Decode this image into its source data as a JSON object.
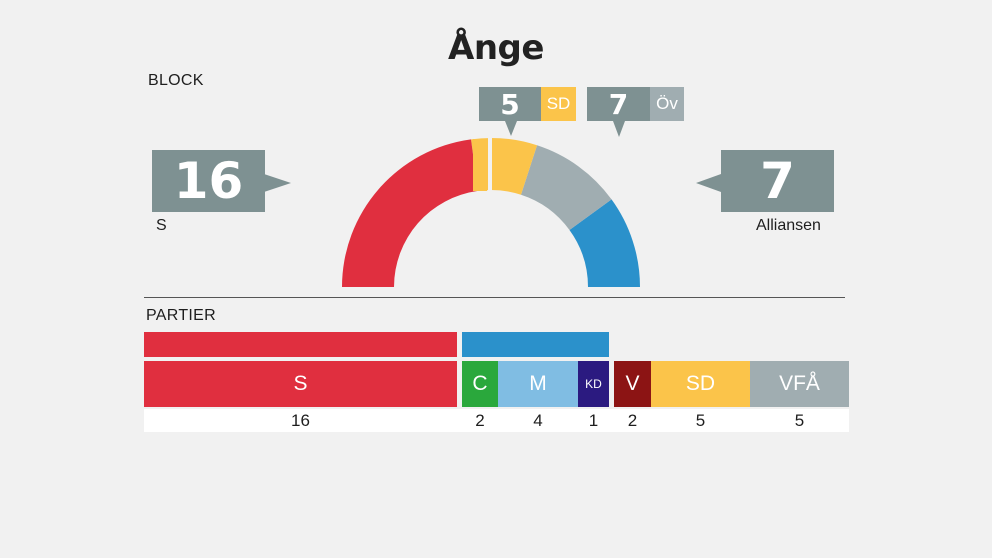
{
  "title": "Ånge",
  "block_label": "BLOCK",
  "parties_label": "PARTIER",
  "blocks": {
    "left": {
      "value": "16",
      "name": "S"
    },
    "right": {
      "value": "7",
      "name": "Alliansen"
    },
    "sd": {
      "value": "5",
      "tag": "SD"
    },
    "ov": {
      "value": "7",
      "tag": "Öv"
    }
  },
  "colors": {
    "S": "#e02f3f",
    "C": "#2aa83c",
    "M": "#80bde3",
    "KD": "#2b1a80",
    "V": "#8c1414",
    "SD": "#fbc44a",
    "VFA": "#a0adb1",
    "alliance": "#2b91cb",
    "other": "#a0adb1",
    "callout": "#7e9192"
  },
  "chart_data": {
    "type": "bar",
    "title": "Ånge",
    "categories": [
      "S",
      "C",
      "M",
      "KD",
      "V",
      "SD",
      "VFÅ"
    ],
    "values": [
      16,
      2,
      4,
      1,
      2,
      5,
      5
    ],
    "blocks": [
      {
        "name": "S",
        "seats": 16
      },
      {
        "name": "SD",
        "seats": 5
      },
      {
        "name": "Öv",
        "seats": 7
      },
      {
        "name": "Alliansen",
        "seats": 7
      }
    ],
    "seat_labels": [
      "16",
      "2",
      "4",
      "1",
      "2",
      "5",
      "5"
    ]
  }
}
